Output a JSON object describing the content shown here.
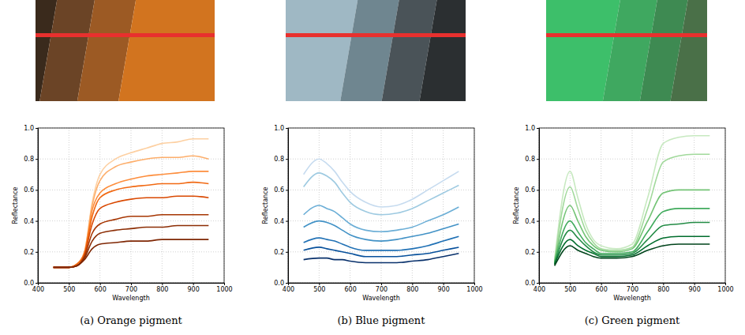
{
  "chart_data": [
    {
      "type": "line",
      "title": "(a) Orange pigment",
      "x_label": "Wavelength",
      "y_label": "Reflectance",
      "xlim": [
        400,
        1000
      ],
      "ylim": [
        0,
        1
      ],
      "xticks": [
        400,
        500,
        600,
        700,
        800,
        900,
        1000
      ],
      "yticks": [
        {
          "value": 0,
          "label": "0.0"
        },
        {
          "value": 0.2,
          "label": "0.2"
        },
        {
          "value": 0.4,
          "label": "0.4"
        },
        {
          "value": 0.6,
          "label": "0.6"
        },
        {
          "value": 0.8,
          "label": "0.8"
        },
        {
          "value": 1,
          "label": "1.0"
        }
      ],
      "grid": true,
      "x": [
        450,
        500,
        525,
        550,
        575,
        600,
        650,
        700,
        750,
        800,
        850,
        900,
        950
      ],
      "series": [
        {
          "color": "#fdd0a2",
          "values": [
            0.1,
            0.1,
            0.12,
            0.2,
            0.52,
            0.7,
            0.8,
            0.84,
            0.87,
            0.9,
            0.91,
            0.93,
            0.93
          ]
        },
        {
          "color": "#fdae6b",
          "values": [
            0.1,
            0.1,
            0.12,
            0.2,
            0.5,
            0.66,
            0.75,
            0.78,
            0.8,
            0.81,
            0.81,
            0.82,
            0.8
          ]
        },
        {
          "color": "#fd8d3c",
          "values": [
            0.1,
            0.1,
            0.12,
            0.19,
            0.47,
            0.58,
            0.64,
            0.67,
            0.69,
            0.7,
            0.71,
            0.72,
            0.72
          ]
        },
        {
          "color": "#f16913",
          "values": [
            0.1,
            0.1,
            0.12,
            0.19,
            0.43,
            0.55,
            0.6,
            0.62,
            0.63,
            0.64,
            0.64,
            0.65,
            0.64
          ]
        },
        {
          "color": "#d94801",
          "values": [
            0.1,
            0.1,
            0.11,
            0.18,
            0.38,
            0.48,
            0.52,
            0.54,
            0.55,
            0.55,
            0.56,
            0.56,
            0.55
          ]
        },
        {
          "color": "#a63603",
          "values": [
            0.1,
            0.1,
            0.11,
            0.17,
            0.32,
            0.38,
            0.41,
            0.43,
            0.43,
            0.44,
            0.44,
            0.44,
            0.44
          ]
        },
        {
          "color": "#8c2d04",
          "values": [
            0.1,
            0.1,
            0.11,
            0.16,
            0.27,
            0.32,
            0.34,
            0.35,
            0.36,
            0.36,
            0.37,
            0.37,
            0.37
          ]
        },
        {
          "color": "#7f2704",
          "values": [
            0.1,
            0.1,
            0.11,
            0.15,
            0.22,
            0.25,
            0.26,
            0.27,
            0.27,
            0.28,
            0.28,
            0.28,
            0.28
          ]
        }
      ]
    },
    {
      "type": "line",
      "title": "(b) Blue pigment",
      "x_label": "Wavelength",
      "y_label": "Reflectance",
      "xlim": [
        400,
        1000
      ],
      "ylim": [
        0,
        1
      ],
      "xticks": [
        400,
        500,
        600,
        700,
        800,
        900,
        1000
      ],
      "yticks": [
        {
          "value": 0,
          "label": "0.0"
        },
        {
          "value": 0.2,
          "label": "0.2"
        },
        {
          "value": 0.4,
          "label": "0.4"
        },
        {
          "value": 0.6,
          "label": "0.6"
        },
        {
          "value": 0.8,
          "label": "0.8"
        },
        {
          "value": 1,
          "label": "1.0"
        }
      ],
      "grid": true,
      "x": [
        450,
        500,
        525,
        550,
        575,
        600,
        650,
        700,
        750,
        800,
        850,
        900,
        950
      ],
      "series": [
        {
          "color": "#c6dbef",
          "values": [
            0.7,
            0.8,
            0.77,
            0.72,
            0.65,
            0.59,
            0.52,
            0.49,
            0.5,
            0.54,
            0.6,
            0.66,
            0.72
          ]
        },
        {
          "color": "#9ecae1",
          "values": [
            0.62,
            0.71,
            0.69,
            0.65,
            0.58,
            0.52,
            0.46,
            0.44,
            0.45,
            0.48,
            0.53,
            0.58,
            0.63
          ]
        },
        {
          "color": "#6baed6",
          "values": [
            0.44,
            0.5,
            0.48,
            0.46,
            0.42,
            0.38,
            0.34,
            0.33,
            0.34,
            0.36,
            0.4,
            0.44,
            0.49
          ]
        },
        {
          "color": "#4292c6",
          "values": [
            0.36,
            0.4,
            0.39,
            0.37,
            0.34,
            0.31,
            0.28,
            0.27,
            0.28,
            0.3,
            0.32,
            0.35,
            0.38
          ]
        },
        {
          "color": "#2171b5",
          "values": [
            0.26,
            0.29,
            0.28,
            0.27,
            0.25,
            0.23,
            0.21,
            0.21,
            0.21,
            0.22,
            0.24,
            0.27,
            0.3
          ]
        },
        {
          "color": "#08519c",
          "values": [
            0.21,
            0.23,
            0.22,
            0.21,
            0.2,
            0.19,
            0.17,
            0.17,
            0.17,
            0.18,
            0.19,
            0.21,
            0.23
          ]
        },
        {
          "color": "#08306b",
          "values": [
            0.15,
            0.16,
            0.16,
            0.15,
            0.15,
            0.14,
            0.13,
            0.13,
            0.13,
            0.14,
            0.15,
            0.17,
            0.19
          ]
        }
      ]
    },
    {
      "type": "line",
      "title": "(c) Green pigment",
      "x_label": "Wavelength",
      "y_label": "Reflectance",
      "xlim": [
        400,
        1000
      ],
      "ylim": [
        0,
        1
      ],
      "xticks": [
        400,
        500,
        600,
        700,
        800,
        900,
        1000
      ],
      "yticks": [
        {
          "value": 0,
          "label": "0.0"
        },
        {
          "value": 0.2,
          "label": "0.2"
        },
        {
          "value": 0.4,
          "label": "0.4"
        },
        {
          "value": 0.6,
          "label": "0.6"
        },
        {
          "value": 0.8,
          "label": "0.8"
        },
        {
          "value": 1,
          "label": "1.0"
        }
      ],
      "grid": true,
      "x": [
        450,
        500,
        525,
        550,
        575,
        600,
        650,
        700,
        750,
        800,
        850,
        900,
        950
      ],
      "series": [
        {
          "color": "#c7e9c0",
          "values": [
            0.15,
            0.72,
            0.55,
            0.38,
            0.28,
            0.24,
            0.22,
            0.25,
            0.55,
            0.9,
            0.94,
            0.95,
            0.95
          ]
        },
        {
          "color": "#a1d99b",
          "values": [
            0.14,
            0.62,
            0.48,
            0.34,
            0.26,
            0.22,
            0.21,
            0.23,
            0.48,
            0.78,
            0.82,
            0.83,
            0.83
          ]
        },
        {
          "color": "#74c476",
          "values": [
            0.13,
            0.5,
            0.4,
            0.3,
            0.24,
            0.21,
            0.2,
            0.22,
            0.4,
            0.58,
            0.6,
            0.6,
            0.6
          ]
        },
        {
          "color": "#41ab5d",
          "values": [
            0.13,
            0.4,
            0.33,
            0.26,
            0.22,
            0.19,
            0.19,
            0.2,
            0.33,
            0.46,
            0.48,
            0.48,
            0.48
          ]
        },
        {
          "color": "#238b45",
          "values": [
            0.12,
            0.34,
            0.29,
            0.24,
            0.2,
            0.18,
            0.18,
            0.19,
            0.28,
            0.37,
            0.38,
            0.39,
            0.39
          ]
        },
        {
          "color": "#006d2c",
          "values": [
            0.12,
            0.28,
            0.24,
            0.21,
            0.19,
            0.17,
            0.17,
            0.18,
            0.24,
            0.29,
            0.3,
            0.3,
            0.3
          ]
        },
        {
          "color": "#00441b",
          "values": [
            0.11,
            0.24,
            0.21,
            0.19,
            0.17,
            0.16,
            0.16,
            0.17,
            0.21,
            0.24,
            0.25,
            0.25,
            0.25
          ]
        }
      ]
    }
  ]
}
